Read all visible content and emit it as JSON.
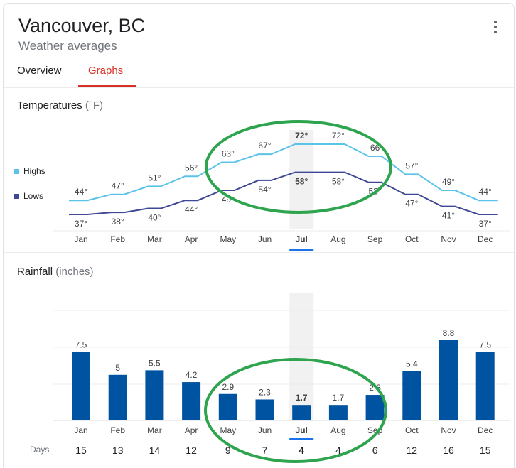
{
  "header": {
    "title": "Vancouver, BC",
    "subtitle": "Weather averages",
    "more_icon": "more-vert-icon"
  },
  "tabs": [
    {
      "label": "Overview",
      "active": false
    },
    {
      "label": "Graphs",
      "active": true
    }
  ],
  "colors": {
    "highs": "#5bc3ea",
    "lows": "#3f4895",
    "rain_bar": "#0053a0",
    "active_tab": "#d93025",
    "annotation_circle": "#2ea44f"
  },
  "selected_month": "Jul",
  "temperatures": {
    "title": "Temperatures",
    "unit": "(°F)",
    "legend": {
      "highs": "Highs",
      "lows": "Lows"
    }
  },
  "rainfall": {
    "title": "Rainfall",
    "unit": "(inches)",
    "days_label": "Days"
  },
  "chart_data": [
    {
      "type": "line",
      "title": "Temperatures (°F)",
      "categories": [
        "Jan",
        "Feb",
        "Mar",
        "Apr",
        "May",
        "Jun",
        "Jul",
        "Aug",
        "Sep",
        "Oct",
        "Nov",
        "Dec"
      ],
      "series": [
        {
          "name": "Highs",
          "values": [
            44,
            47,
            51,
            56,
            63,
            67,
            72,
            72,
            66,
            57,
            49,
            44
          ],
          "labels": [
            "44°",
            "47°",
            "51°",
            "56°",
            "63°",
            "67°",
            "72°",
            "72°",
            "66",
            "57°",
            "49°",
            "44°"
          ]
        },
        {
          "name": "Lows",
          "values": [
            37,
            38,
            40,
            44,
            49,
            54,
            58,
            58,
            53,
            47,
            41,
            37
          ],
          "labels": [
            "37°",
            "38°",
            "40°",
            "44°",
            "49°",
            "54°",
            "58°",
            "58°",
            "53°",
            "47°",
            "41°",
            "37°"
          ]
        }
      ],
      "legend": "left"
    },
    {
      "type": "bar",
      "title": "Rainfall (inches)",
      "categories": [
        "Jan",
        "Feb",
        "Mar",
        "Apr",
        "May",
        "Jun",
        "Jul",
        "Aug",
        "Sep",
        "Oct",
        "Nov",
        "Dec"
      ],
      "values": [
        7.5,
        5,
        5.5,
        4.2,
        2.9,
        2.3,
        1.7,
        1.7,
        2.8,
        5.4,
        8.8,
        7.5
      ],
      "value_labels": [
        "7.5",
        "5",
        "5.5",
        "4.2",
        "2.9",
        "2.3",
        "1.7",
        "1.7",
        "2.8",
        "5.4",
        "8.8",
        "7.5"
      ],
      "days": [
        15,
        13,
        14,
        12,
        9,
        7,
        4,
        4,
        6,
        12,
        16,
        15
      ]
    }
  ]
}
